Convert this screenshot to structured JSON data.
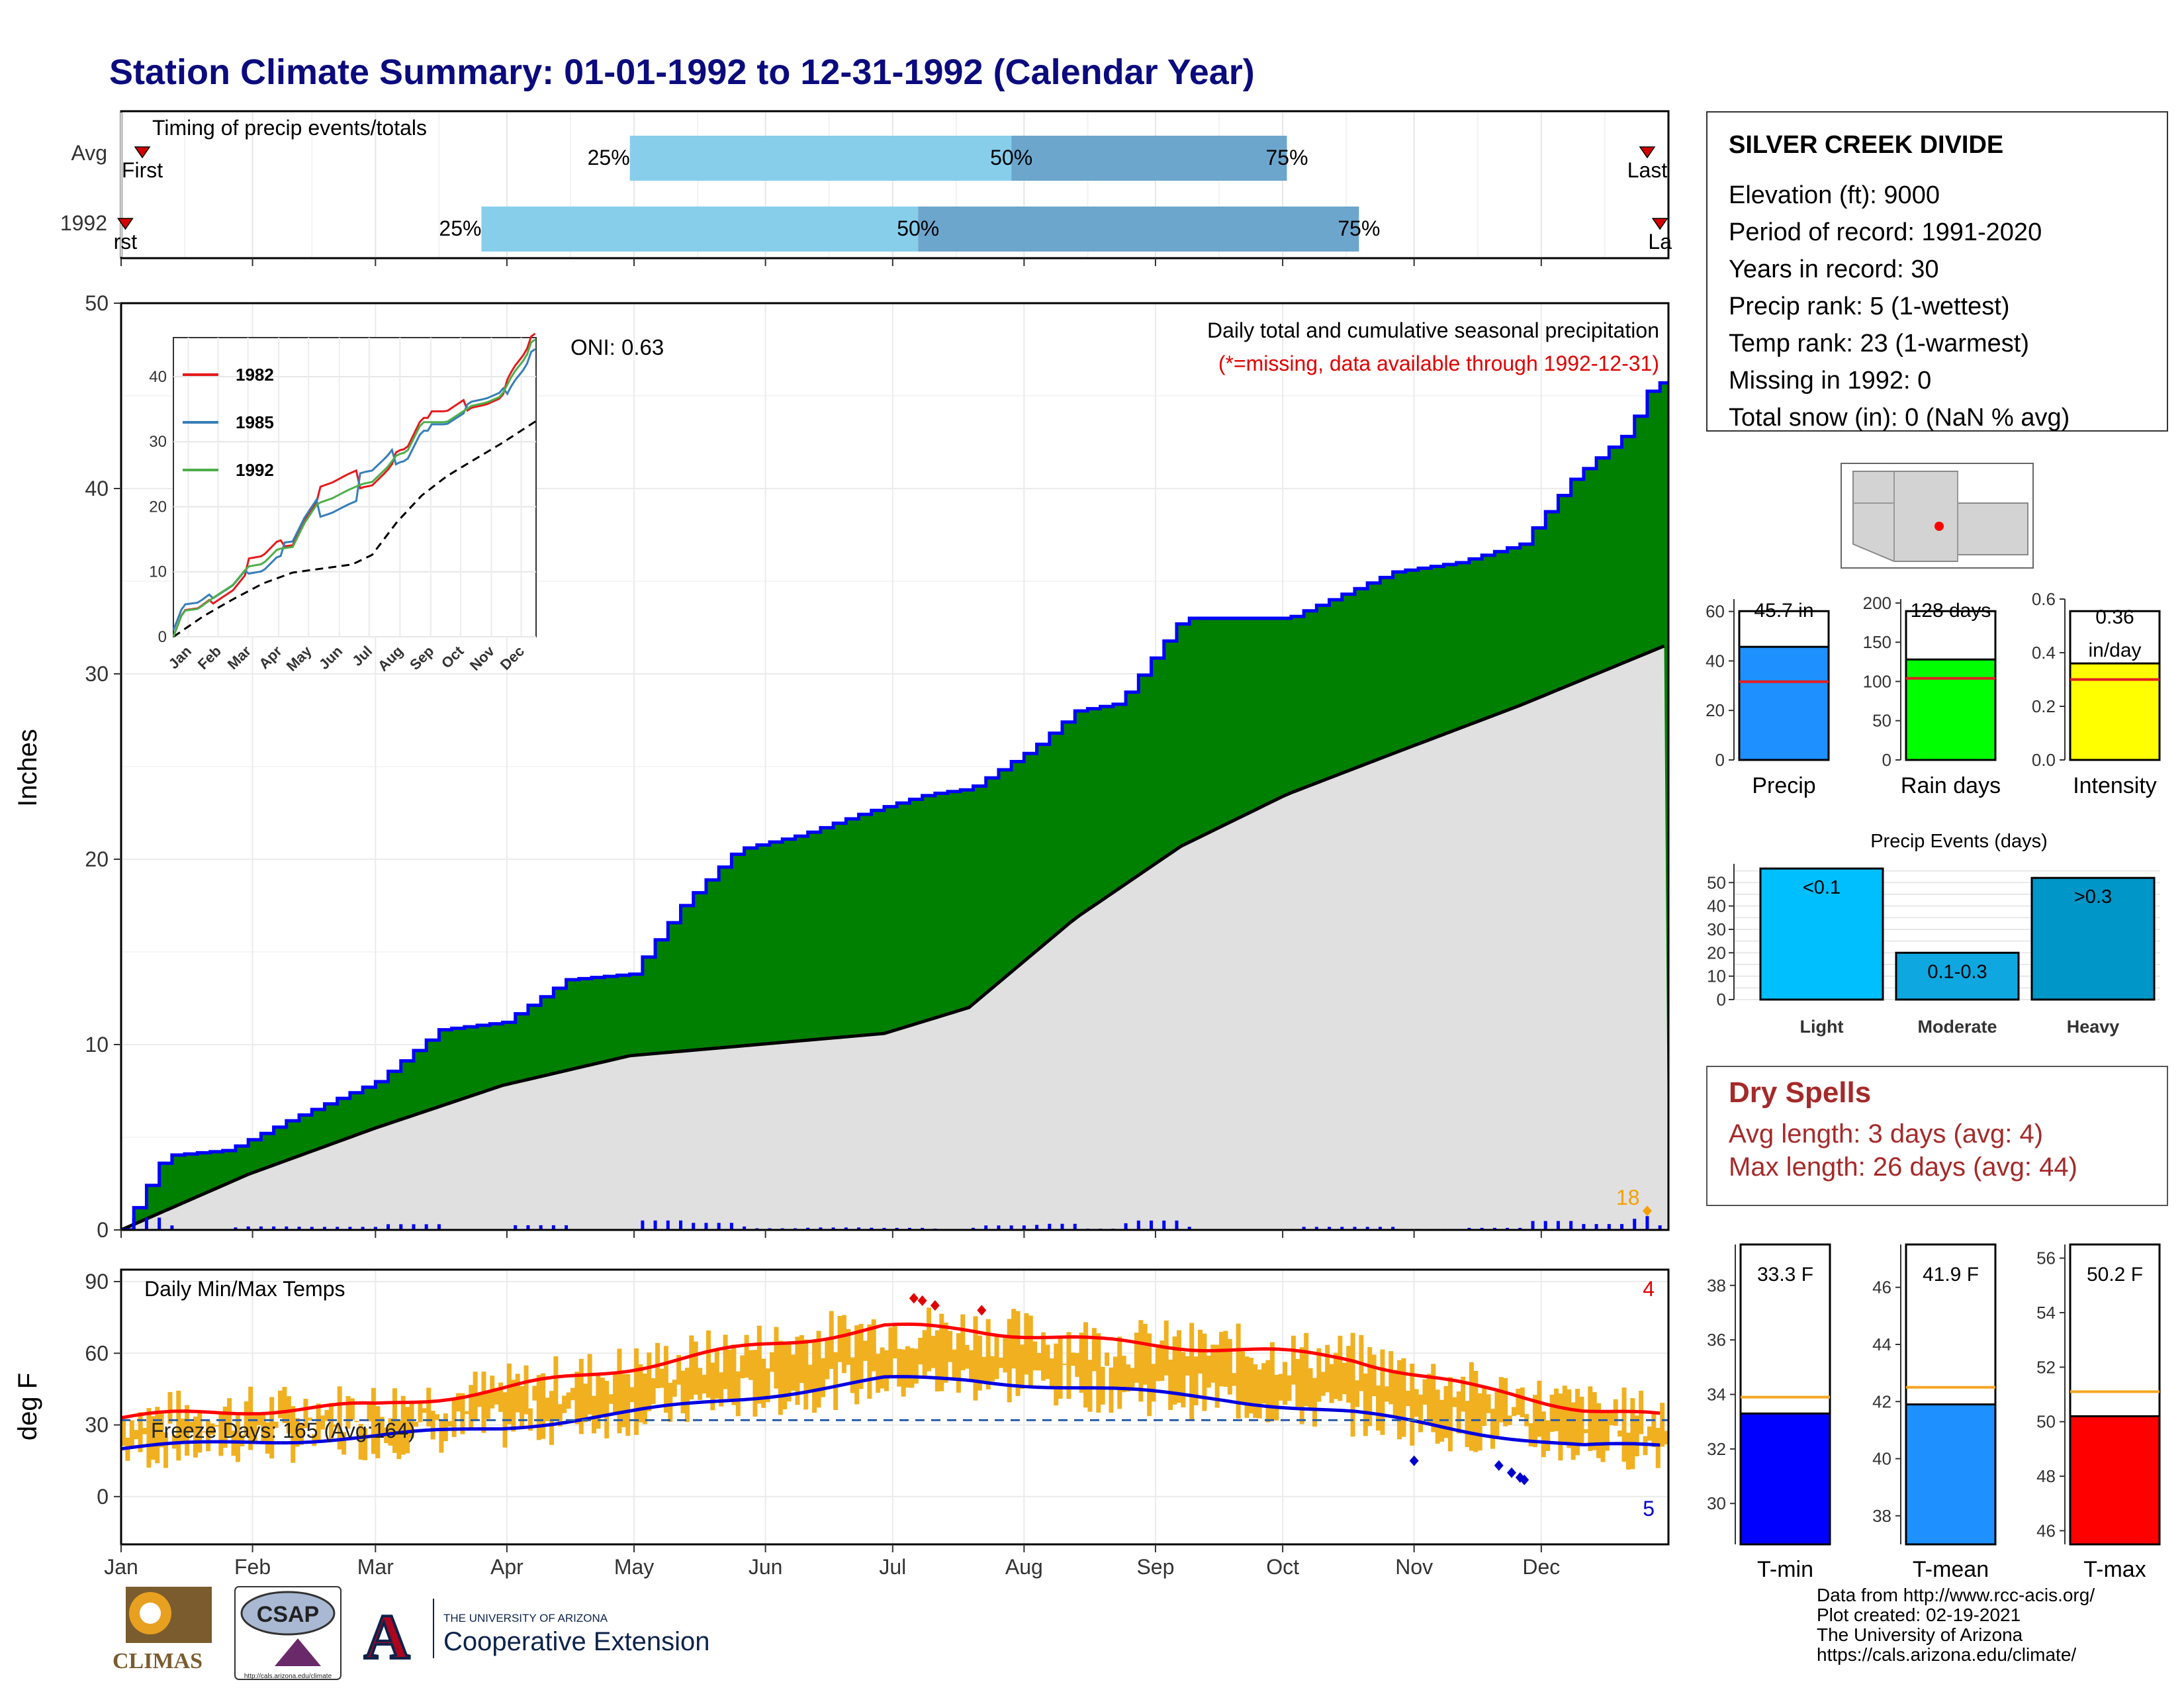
{
  "title": "Station Climate Summary: 01-01-1992 to 12-31-1992 (Calendar Year)",
  "timing": {
    "title": "Timing of precip events/totals",
    "rows": [
      {
        "label": "Avg",
        "first": "First",
        "last": "Last",
        "first_day": 5,
        "last_day": 360,
        "p25_day": 120,
        "p50_day": 210,
        "p75_day": 275
      },
      {
        "label": "1992",
        "first": "rst",
        "last": "La",
        "first_day": 1,
        "last_day": 363,
        "p25_day": 85,
        "p50_day": 188,
        "p75_day": 292
      }
    ],
    "p25_label": "25%",
    "p50_label": "50%",
    "p75_label": "75%"
  },
  "precip_panel": {
    "ylabel": "Inches",
    "yticks": [
      0,
      10,
      20,
      30,
      40,
      50
    ],
    "header": "Daily total and cumulative seasonal precipitation",
    "missing_note": "(*=missing, data available through 1992-12-31)",
    "oni": "ONI: 0.63",
    "count_label": "18"
  },
  "inset": {
    "yticks": [
      0,
      10,
      20,
      30,
      40
    ],
    "xticks": [
      "Jan",
      "Feb",
      "Mar",
      "Apr",
      "May",
      "Jun",
      "Jul",
      "Aug",
      "Sep",
      "Oct",
      "Nov",
      "Dec"
    ],
    "legend": [
      {
        "name": "1982",
        "color": "#e41a1c"
      },
      {
        "name": "1985",
        "color": "#377eb8"
      },
      {
        "name": "1992",
        "color": "#4daf4a"
      }
    ]
  },
  "temp_panel": {
    "ylabel": "deg F",
    "yticks": [
      0,
      30,
      60,
      90
    ],
    "title": "Daily Min/Max Temps",
    "freeze": "Freeze Days: 165 (Avg:164)",
    "max_count": "4",
    "min_count": "5"
  },
  "months": [
    "Jan",
    "Feb",
    "Mar",
    "Apr",
    "May",
    "Jun",
    "Jul",
    "Aug",
    "Sep",
    "Oct",
    "Nov",
    "Dec"
  ],
  "station": {
    "name": "SILVER CREEK DIVIDE",
    "lines": [
      "Elevation (ft): 9000",
      "Period of record: 1991-2020",
      "Years in record: 30",
      "Precip rank: 5 (1-wettest)",
      "Temp rank: 23 (1-warmest)",
      "Missing in 1992: 0",
      "Total snow (in): 0 (NaN % avg)"
    ]
  },
  "small_bars": [
    {
      "name": "Precip",
      "value_label": "45.7 in",
      "value": 45.7,
      "avg": 31.6,
      "ymax": 65,
      "yticks": [
        0,
        20,
        40,
        60
      ],
      "color": "#1e90ff"
    },
    {
      "name": "Rain days",
      "value_label": "128 days",
      "value": 128,
      "avg": 104,
      "ymax": 205,
      "yticks": [
        0,
        50,
        100,
        150,
        200
      ],
      "color": "#00ff00"
    },
    {
      "name": "Intensity",
      "value_label": "0.36 in/day",
      "value": 0.36,
      "avg": 0.3,
      "ymax": 0.6,
      "yticks": [
        "0.0",
        "0.2",
        "0.4",
        "0.6"
      ],
      "color": "#ffff00"
    }
  ],
  "events": {
    "title": "Precip Events (days)",
    "yticks": [
      0,
      10,
      20,
      30,
      40,
      50
    ],
    "bars": [
      {
        "name": "Light",
        "label": "<0.1",
        "value": 56,
        "color": "#00bfff"
      },
      {
        "name": "Moderate",
        "label": "0.1-0.3",
        "value": 20,
        "color": "#0fa7e0"
      },
      {
        "name": "Heavy",
        "label": ">0.3",
        "value": 52,
        "color": "#0096c8"
      }
    ]
  },
  "dry_spells": {
    "title": "Dry Spells",
    "avg": "Avg length: 3 days (avg: 4)",
    "max": "Max length: 26 days (avg: 44)"
  },
  "temp_bars": [
    {
      "name": "T-min",
      "value_label": "33.3 F",
      "value": 33.3,
      "avg": 33.9,
      "ymin": 28.5,
      "ymax": 39.5,
      "yticks": [
        30,
        32,
        34,
        36,
        38
      ],
      "color": "#0000ff"
    },
    {
      "name": "T-mean",
      "value_label": "41.9 F",
      "value": 41.9,
      "avg": 42.5,
      "ymin": 37,
      "ymax": 47.5,
      "yticks": [
        38,
        40,
        42,
        44,
        46
      ],
      "color": "#1e90ff"
    },
    {
      "name": "T-max",
      "value_label": "50.2 F",
      "value": 50.2,
      "avg": 51.1,
      "ymin": 45.5,
      "ymax": 56.5,
      "yticks": [
        46,
        48,
        50,
        52,
        54,
        56
      ],
      "color": "#ff0000"
    }
  ],
  "credits": [
    "Data from http://www.rcc-acis.org/",
    "Plot created: 02-19-2021",
    "The University of Arizona",
    "https://cals.arizona.edu/climate/"
  ],
  "logos": {
    "climas": "CLIMAS",
    "csap": "CSAP",
    "csap_url": "http://cals.arizona.edu/climate",
    "ua_line1": "THE UNIVERSITY OF ARIZONA",
    "ua_line2": "Cooperative Extension",
    "ua_mark": "A"
  },
  "chart_data": [
    {
      "type": "area",
      "title": "Daily total and cumulative seasonal precipitation",
      "ylabel": "Inches",
      "ylim": [
        0,
        50
      ],
      "series": [
        {
          "name": "1992",
          "x_day": [
            0,
            10,
            25,
            40,
            60,
            75,
            90,
            105,
            120,
            132,
            145,
            160,
            175,
            190,
            200,
            215,
            225,
            235,
            250,
            262,
            275,
            285,
            300,
            315,
            330,
            342,
            355,
            361,
            365
          ],
          "values": [
            0,
            4,
            4.3,
            6,
            8,
            10.8,
            11.2,
            13.5,
            13.8,
            17.5,
            20.5,
            21.3,
            22.5,
            23.5,
            23.8,
            26,
            28,
            28.4,
            33,
            33,
            33,
            34,
            35.5,
            36,
            37,
            40.5,
            43,
            45.7,
            45.7
          ]
        },
        {
          "name": "Avg",
          "x_day": [
            0,
            30,
            60,
            90,
            120,
            150,
            180,
            200,
            225,
            250,
            275,
            300,
            330,
            365
          ],
          "values": [
            0,
            3,
            5.5,
            7.8,
            9.4,
            10,
            10.6,
            12,
            16.8,
            20.7,
            23.5,
            25.7,
            28.3,
            31.6
          ]
        }
      ],
      "daily_max": 2.6
    },
    {
      "type": "line",
      "title": "Daily Min/Max Temps",
      "ylabel": "deg F",
      "ylim": [
        -20,
        95
      ],
      "avg_tmax": {
        "x_day": [
          0,
          30,
          60,
          90,
          120,
          150,
          180,
          200,
          230,
          260,
          290,
          320,
          345,
          365
        ],
        "values": [
          33,
          36,
          38,
          45,
          54,
          63,
          71,
          70,
          65,
          62,
          58,
          45,
          37,
          33
        ]
      },
      "avg_tmin": {
        "x_day": [
          0,
          30,
          60,
          90,
          120,
          150,
          180,
          200,
          230,
          260,
          290,
          320,
          345,
          365
        ],
        "values": [
          20,
          23,
          25,
          29,
          35,
          42,
          49,
          49,
          45,
          41,
          35,
          27,
          21,
          21
        ]
      },
      "freeze_line": 32
    }
  ]
}
